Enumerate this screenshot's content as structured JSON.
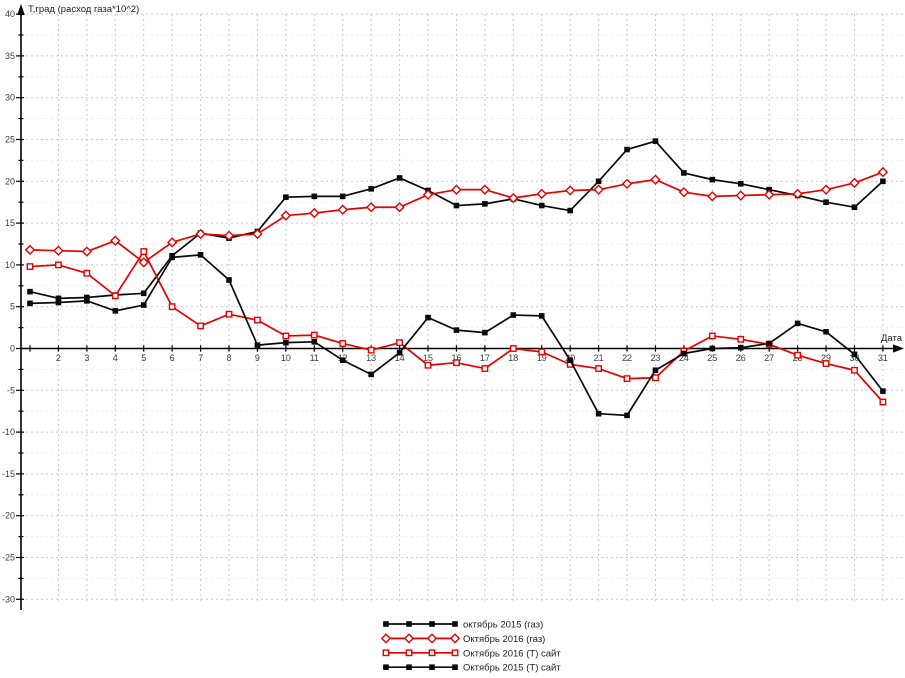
{
  "chart_data": {
    "type": "line",
    "title_y": "Т,град (расход газа*10^2)",
    "title_x": "Дата",
    "x": [
      1,
      2,
      3,
      4,
      5,
      6,
      7,
      8,
      9,
      10,
      11,
      12,
      13,
      14,
      15,
      16,
      17,
      18,
      19,
      20,
      21,
      22,
      23,
      24,
      25,
      26,
      27,
      28,
      29,
      30,
      31
    ],
    "x_tick_labels": [
      "",
      "2",
      "3",
      "4",
      "5",
      "6",
      "7",
      "8",
      "9",
      "10",
      "11",
      "12",
      "13",
      "14",
      "15",
      "16",
      "17",
      "18",
      "19",
      "20",
      "21",
      "22",
      "23",
      "24",
      "25",
      "26",
      "27",
      "28",
      "29",
      "30",
      "31"
    ],
    "ylim": [
      -30,
      40
    ],
    "y_tick_step": 5,
    "y_minor_step": 2.5,
    "y_tick_labels": [
      "40",
      "35",
      "30",
      "25",
      "20",
      "15",
      "10",
      "5",
      "0",
      "-5",
      "-10",
      "-15",
      "-20",
      "-25",
      "-30"
    ],
    "grid": true,
    "legend_position": "bottom-center",
    "series": [
      {
        "name": "октябрь 2015 (газ)",
        "color": "#0a0a0a",
        "marker": "square-filled",
        "values": [
          6.8,
          6.0,
          6.1,
          6.4,
          6.6,
          11.1,
          13.8,
          13.2,
          14.0,
          18.1,
          18.2,
          18.2,
          19.1,
          20.4,
          18.9,
          17.1,
          17.3,
          17.9,
          17.1,
          16.5,
          20.0,
          23.8,
          24.8,
          21.0,
          20.2,
          19.7,
          19.0,
          18.3,
          17.5,
          16.9,
          20.0
        ]
      },
      {
        "name": "Октябрь 2016 (газ)",
        "color": "#e60000",
        "marker": "diamond-open",
        "values": [
          11.8,
          11.7,
          11.6,
          12.9,
          10.3,
          12.7,
          13.7,
          13.5,
          13.7,
          15.9,
          16.2,
          16.6,
          16.9,
          16.9,
          18.4,
          19.0,
          19.0,
          18.0,
          18.5,
          18.9,
          19.0,
          19.7,
          20.2,
          18.7,
          18.2,
          18.3,
          18.4,
          18.5,
          19.0,
          19.8,
          21.1
        ]
      },
      {
        "name": "Октябрь 2016 (Т) сайт",
        "color": "#e60000",
        "marker": "square-open",
        "values": [
          9.8,
          10.0,
          9.0,
          6.3,
          11.6,
          5.0,
          2.7,
          4.1,
          3.4,
          1.5,
          1.6,
          0.6,
          -0.2,
          0.7,
          -2.0,
          -1.7,
          -2.4,
          0.0,
          -0.4,
          -1.9,
          -2.4,
          -3.6,
          -3.5,
          -0.3,
          1.5,
          1.1,
          0.5,
          -0.8,
          -1.8,
          -2.6,
          -6.4
        ]
      },
      {
        "name": "Октябрь 2015 (Т) сайт",
        "color": "#0a0a0a",
        "marker": "square-filled",
        "values": [
          5.4,
          5.5,
          5.7,
          4.5,
          5.2,
          10.9,
          11.2,
          8.2,
          0.4,
          0.7,
          0.8,
          -1.4,
          -3.1,
          -0.5,
          3.7,
          2.2,
          1.9,
          4.0,
          3.9,
          -1.4,
          -7.8,
          -8.0,
          -2.6,
          -0.6,
          0.0,
          0.1,
          0.6,
          3.0,
          2.0,
          -0.7,
          -5.1
        ]
      }
    ],
    "colors": {
      "axis": "#000000",
      "grid_major": "#c9c9c9",
      "grid_minor": "#ececec",
      "tick_text": "#404040",
      "background": "#ffffff"
    }
  }
}
